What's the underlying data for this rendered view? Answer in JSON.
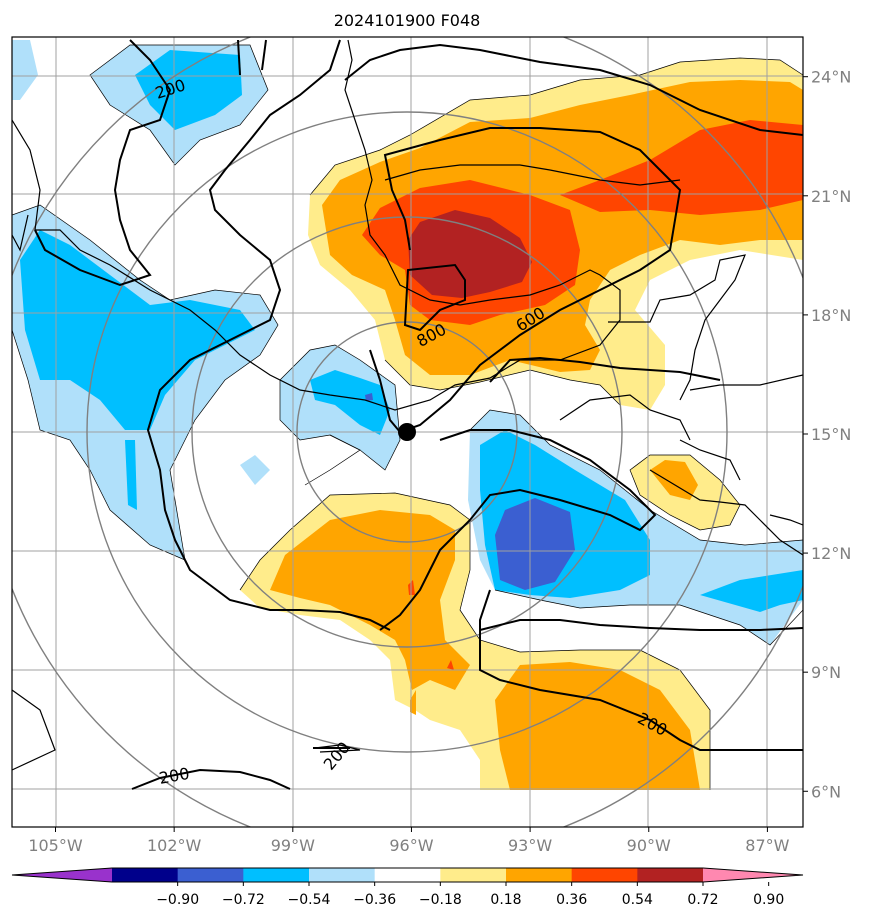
{
  "chart_data": {
    "type": "heatmap",
    "title": "2024101900 F048",
    "map": {
      "lon_range": [
        -106.1,
        -86.1
      ],
      "lat_range": [
        5.1,
        25.0
      ],
      "xticks": [
        -105,
        -102,
        -99,
        -96,
        -93,
        -90,
        -87
      ],
      "xtick_labels": [
        "105°W",
        "102°W",
        "99°W",
        "96°W",
        "93°W",
        "90°W",
        "87°W"
      ],
      "yticks": [
        6,
        9,
        12,
        15,
        18,
        21,
        24
      ],
      "ytick_labels": [
        "6°N",
        "9°N",
        "12°N",
        "15°N",
        "18°N",
        "21°N",
        "24°N"
      ],
      "grid": true,
      "marker": {
        "lon": -96.0,
        "lat": 15.0
      }
    },
    "colorbar": {
      "levels": [
        -0.9,
        -0.72,
        -0.54,
        -0.36,
        -0.18,
        0.18,
        0.36,
        0.54,
        0.72,
        0.9
      ],
      "labels": [
        "−0.90",
        "−0.72",
        "−0.54",
        "−0.36",
        "−0.18",
        "0.18",
        "0.36",
        "0.54",
        "0.72",
        "0.90"
      ],
      "colors": [
        "#9932cc",
        "#00008b",
        "#3b5fd1",
        "#00bfff",
        "#b0e0fa",
        "#ffffff",
        "#ffec8b",
        "#ffa500",
        "#ff4500",
        "#b22222",
        "#ff88b0"
      ],
      "extend": "both"
    },
    "contour_labels": [
      {
        "text": "200",
        "lon": -102.1,
        "lat": 23.7,
        "rot": -18
      },
      {
        "text": "800",
        "lon": -95.5,
        "lat": 17.5,
        "rot": -28
      },
      {
        "text": "600",
        "lon": -93.0,
        "lat": 17.9,
        "rot": -32
      },
      {
        "text": "200",
        "lon": -89.9,
        "lat": 7.7,
        "rot": 28
      },
      {
        "text": "200",
        "lon": -97.9,
        "lat": 6.9,
        "rot": -50
      },
      {
        "text": "200",
        "lon": -102.0,
        "lat": 6.4,
        "rot": -10
      }
    ]
  }
}
